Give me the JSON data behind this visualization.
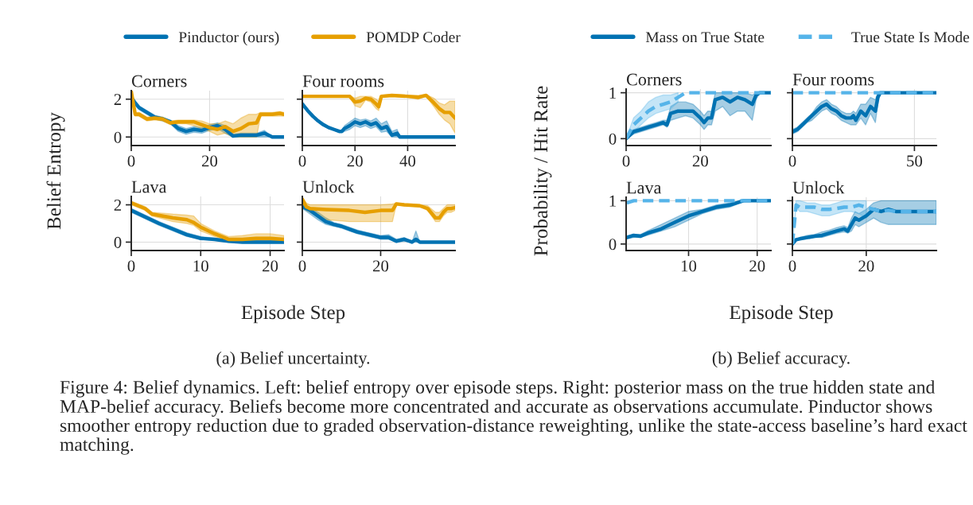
{
  "chart_data": [
    {
      "type": "line",
      "title": "Corners",
      "ylabel": "Belief Entropy",
      "legend": "top",
      "grid": true,
      "xlim": [
        0,
        39
      ],
      "xticks": [
        0,
        20
      ],
      "ylim": [
        -0.45,
        2.45
      ],
      "yticks": [
        0,
        2
      ],
      "annotations": [
        "(a) Belief uncertainty.",
        "Figure 4: Belief dynamics. Left: belief entropy over episode steps. Right: posterior mass on the true hidden state and MAP-belief accuracy. Beliefs become more concentrated and accurate as observations accumulate. Pinductor shows smoother entropy reduction due to graded observation-distance reweighting, unlike the state-access baseline’s hard exact matching."
      ],
      "series": [
        {
          "name": "Pinductor (ours)",
          "color": "#0072b2",
          "line_style": "solid",
          "x": [
            0,
            1,
            2,
            4,
            6,
            8,
            10,
            12,
            14,
            16,
            18,
            20,
            22,
            24,
            26,
            28,
            30,
            32,
            34,
            36,
            39
          ],
          "values": [
            2.1,
            1.8,
            1.55,
            1.3,
            1.05,
            0.95,
            0.8,
            0.45,
            0.3,
            0.4,
            0.35,
            0.5,
            0.6,
            0.4,
            0.05,
            0.1,
            0.1,
            0.1,
            0.2,
            0,
            0
          ],
          "lower": [
            2.0,
            1.7,
            1.45,
            1.2,
            0.95,
            0.85,
            0.7,
            0.3,
            0.15,
            0.25,
            0.2,
            0.35,
            0.45,
            0.2,
            0,
            0,
            0,
            0,
            0,
            0,
            0
          ],
          "upper": [
            2.2,
            1.9,
            1.65,
            1.4,
            1.15,
            1.05,
            0.9,
            0.6,
            0.45,
            0.55,
            0.5,
            0.65,
            0.75,
            0.6,
            0.15,
            0.2,
            0.2,
            0.2,
            0.35,
            0,
            0
          ]
        },
        {
          "name": "POMDP Coder",
          "color": "#e69f00",
          "line_style": "solid",
          "x": [
            0,
            1,
            2,
            4,
            6,
            8,
            10,
            12,
            14,
            16,
            18,
            20,
            22,
            24,
            26,
            28,
            30,
            32,
            33,
            36,
            38,
            39
          ],
          "values": [
            2.4,
            1.2,
            1.2,
            0.95,
            1.0,
            0.95,
            0.75,
            0.8,
            0.8,
            0.8,
            0.65,
            0.5,
            0.4,
            0.55,
            0.3,
            0.45,
            0.7,
            0.75,
            1.2,
            1.2,
            1.25,
            1.2
          ],
          "lower": [
            2.3,
            1.1,
            1.1,
            0.85,
            0.9,
            0.85,
            0.65,
            0.7,
            0.7,
            0.6,
            0.45,
            0.3,
            0.1,
            0.2,
            0,
            0,
            0,
            0,
            1.1,
            1.1,
            1.1,
            1.1
          ],
          "upper": [
            2.45,
            1.3,
            1.3,
            1.05,
            1.1,
            1.05,
            0.85,
            0.9,
            0.9,
            0.9,
            0.85,
            0.7,
            0.7,
            0.85,
            0.7,
            1.0,
            1.2,
            1.2,
            1.3,
            1.3,
            1.35,
            1.3
          ]
        }
      ]
    },
    {
      "type": "line",
      "title": "Four rooms",
      "grid": true,
      "tick_labels": "x",
      "xlim": [
        0,
        58
      ],
      "xticks": [
        0,
        20,
        40
      ],
      "ylim": [
        -0.45,
        2.45
      ],
      "yticks": [
        0,
        2
      ],
      "series": [
        {
          "color": "#0072b2",
          "line_style": "solid",
          "x": [
            0,
            2,
            4,
            6,
            8,
            10,
            12,
            14,
            15,
            16,
            18,
            20,
            22,
            24,
            26,
            28,
            30,
            32,
            34,
            36,
            37,
            58
          ],
          "values": [
            1.75,
            1.4,
            1.1,
            0.85,
            0.65,
            0.5,
            0.4,
            0.3,
            0.3,
            0.45,
            0.6,
            0.8,
            0.7,
            0.8,
            0.65,
            0.75,
            0.45,
            0.55,
            0.1,
            0.2,
            0,
            0
          ],
          "lower": [
            1.7,
            1.35,
            1.05,
            0.8,
            0.6,
            0.45,
            0.35,
            0.25,
            0.25,
            0.3,
            0.4,
            0.6,
            0.5,
            0.6,
            0.45,
            0.55,
            0.25,
            0.3,
            0,
            0,
            0,
            0
          ],
          "upper": [
            1.8,
            1.45,
            1.15,
            0.9,
            0.7,
            0.55,
            0.45,
            0.35,
            0.35,
            0.6,
            0.8,
            1.0,
            0.9,
            0.95,
            0.85,
            1.0,
            0.7,
            0.85,
            0.3,
            0.4,
            0,
            0
          ]
        },
        {
          "color": "#e69f00",
          "line_style": "solid",
          "x": [
            0,
            10,
            18,
            20,
            22,
            24,
            26,
            28,
            29,
            30,
            34,
            40,
            44,
            47,
            50,
            52,
            54,
            56,
            58
          ],
          "values": [
            2.15,
            2.15,
            2.15,
            1.85,
            1.9,
            2.05,
            2.0,
            1.75,
            1.6,
            2.15,
            2.2,
            2.15,
            2.1,
            2.2,
            1.8,
            1.5,
            1.3,
            1.3,
            1.0
          ],
          "lower": [
            2.1,
            2.1,
            2.1,
            1.65,
            1.55,
            1.95,
            1.85,
            1.5,
            1.4,
            2.1,
            2.15,
            2.1,
            2.0,
            2.15,
            1.6,
            1.2,
            0.9,
            0.7,
            0.2
          ],
          "upper": [
            2.2,
            2.2,
            2.2,
            2.05,
            2.15,
            2.15,
            2.15,
            2.0,
            1.9,
            2.2,
            2.25,
            2.2,
            2.2,
            2.25,
            2.05,
            1.8,
            1.7,
            1.9,
            1.9
          ]
        }
      ]
    },
    {
      "type": "line",
      "title": "Lava",
      "xlabel": "Episode Step",
      "grid": true,
      "xlim": [
        0,
        22
      ],
      "xticks": [
        0,
        10,
        20
      ],
      "ylim": [
        -0.45,
        2.45
      ],
      "yticks": [
        0,
        2
      ],
      "series": [
        {
          "color": "#0072b2",
          "line_style": "solid",
          "x": [
            0,
            2,
            4,
            6,
            8,
            10,
            12,
            14,
            16,
            18,
            20,
            22
          ],
          "values": [
            1.7,
            1.35,
            1.0,
            0.7,
            0.4,
            0.2,
            0.15,
            0.05,
            0,
            0,
            0,
            0
          ],
          "lower": [
            1.6,
            1.25,
            0.9,
            0.6,
            0.3,
            0.15,
            0.1,
            0,
            0,
            0,
            0,
            0
          ],
          "upper": [
            1.8,
            1.45,
            1.1,
            0.8,
            0.5,
            0.3,
            0.2,
            0.1,
            0.05,
            0.05,
            0.05,
            0.05
          ]
        },
        {
          "color": "#e69f00",
          "line_style": "solid",
          "x": [
            0,
            2,
            3,
            6,
            8,
            9,
            10,
            12,
            14,
            16,
            18,
            20,
            22
          ],
          "values": [
            2.1,
            1.8,
            1.5,
            1.3,
            1.2,
            1.05,
            0.8,
            0.45,
            0.15,
            0.15,
            0.2,
            0.2,
            0.15
          ],
          "lower": [
            2.0,
            1.7,
            1.4,
            1.1,
            1.0,
            0.9,
            0.6,
            0.3,
            0.05,
            0.05,
            0.05,
            0.05,
            0.05
          ],
          "upper": [
            2.2,
            1.9,
            1.6,
            1.5,
            1.45,
            1.4,
            1.0,
            0.6,
            0.3,
            0.35,
            0.45,
            0.45,
            0.35
          ]
        }
      ]
    },
    {
      "type": "line",
      "title": "Unlock",
      "grid": true,
      "tick_labels": "x",
      "xlim": [
        0,
        39
      ],
      "xticks": [
        0,
        20
      ],
      "ylim": [
        -0.45,
        2.45
      ],
      "yticks": [
        0,
        2
      ],
      "series": [
        {
          "color": "#0072b2",
          "line_style": "solid",
          "x": [
            0,
            2,
            4,
            6,
            8,
            10,
            12,
            14,
            16,
            18,
            20,
            22,
            24,
            26,
            28,
            29,
            30,
            39
          ],
          "values": [
            1.9,
            1.7,
            1.4,
            1.1,
            0.95,
            0.85,
            0.7,
            0.55,
            0.45,
            0.35,
            0.25,
            0.25,
            0.05,
            0.15,
            0,
            0.15,
            0,
            0
          ],
          "lower": [
            1.8,
            1.5,
            1.2,
            0.95,
            0.85,
            0.75,
            0.6,
            0.45,
            0.35,
            0.25,
            0.15,
            0.15,
            0,
            0.05,
            0,
            0,
            0,
            0
          ],
          "upper": [
            2.0,
            1.85,
            1.6,
            1.3,
            1.05,
            0.95,
            0.8,
            0.65,
            0.55,
            0.45,
            0.35,
            0.4,
            0.15,
            0.25,
            0,
            0.6,
            0,
            0
          ]
        },
        {
          "color": "#e69f00",
          "line_style": "solid",
          "x": [
            0,
            1,
            2,
            6,
            12,
            16,
            20,
            23,
            24,
            26,
            30,
            32,
            34,
            35,
            36,
            37,
            38,
            39
          ],
          "values": [
            2.3,
            1.9,
            1.8,
            1.75,
            1.7,
            1.6,
            1.7,
            1.7,
            2.05,
            2.0,
            1.95,
            1.8,
            1.3,
            1.3,
            1.6,
            1.8,
            1.8,
            1.85
          ],
          "lower": [
            2.2,
            1.7,
            1.6,
            1.2,
            1.1,
            1.1,
            1.1,
            1.1,
            2.0,
            1.95,
            1.9,
            1.7,
            1.1,
            1.1,
            1.4,
            1.6,
            1.6,
            1.7
          ],
          "upper": [
            2.4,
            2.1,
            2.0,
            2.0,
            2.0,
            2.0,
            2.0,
            2.05,
            2.1,
            2.05,
            2.0,
            1.95,
            1.6,
            1.6,
            1.8,
            2.0,
            2.0,
            2.0
          ]
        }
      ]
    },
    {
      "type": "line",
      "title": "Corners",
      "ylabel": "Probability / Hit Rate",
      "legend": "top",
      "grid": true,
      "xlim": [
        0,
        39
      ],
      "xticks": [
        0,
        20
      ],
      "ylim": [
        -0.15,
        1.08
      ],
      "yticks": [
        0,
        1
      ],
      "annotations": [
        "(b) Belief accuracy."
      ],
      "series": [
        {
          "name": "Mass on True State",
          "color": "#0072b2",
          "line_style": "solid",
          "x": [
            0,
            2,
            4,
            6,
            8,
            10,
            11,
            12,
            14,
            16,
            18,
            20,
            21,
            22,
            23,
            24,
            26,
            28,
            30,
            32,
            34,
            35,
            36,
            39
          ],
          "values": [
            0,
            0.15,
            0.2,
            0.25,
            0.3,
            0.35,
            0.3,
            0.55,
            0.6,
            0.6,
            0.6,
            0.45,
            0.35,
            0.45,
            0.45,
            0.85,
            0.9,
            0.8,
            0.9,
            0.85,
            0.75,
            0.95,
            1,
            1
          ],
          "lower": [
            0,
            0.1,
            0.15,
            0.2,
            0.25,
            0.3,
            0.25,
            0.4,
            0.45,
            0.5,
            0.45,
            0.3,
            0.2,
            0.3,
            0.3,
            0.6,
            0.7,
            0.5,
            0.6,
            0.6,
            0.4,
            0.85,
            1,
            1
          ],
          "upper": [
            0,
            0.2,
            0.25,
            0.3,
            0.35,
            0.4,
            0.4,
            0.7,
            0.8,
            0.8,
            0.75,
            0.6,
            0.5,
            0.6,
            0.6,
            1.0,
            1.0,
            1.0,
            1.0,
            1.0,
            0.95,
            1,
            1,
            1
          ]
        },
        {
          "name": "True State Is Mode",
          "color": "#56b4e9",
          "line_style": "dashed",
          "x": [
            0,
            2,
            4,
            6,
            8,
            10,
            12,
            14,
            16,
            39
          ],
          "values": [
            0,
            0.3,
            0.45,
            0.6,
            0.7,
            0.75,
            0.8,
            0.9,
            1,
            1
          ],
          "lower": [
            0,
            0.15,
            0.3,
            0.45,
            0.55,
            0.6,
            0.65,
            0.8,
            null,
            null
          ],
          "upper": [
            0,
            0.45,
            0.6,
            0.8,
            0.9,
            0.95,
            0.95,
            1,
            null,
            null
          ]
        }
      ]
    },
    {
      "type": "line",
      "title": "Four rooms",
      "grid": true,
      "tick_labels": "x",
      "xlim": [
        0,
        59
      ],
      "xticks": [
        0,
        50
      ],
      "ylim": [
        -0.15,
        1.08
      ],
      "yticks": [
        0,
        1
      ],
      "series": [
        {
          "color": "#0072b2",
          "line_style": "solid",
          "x": [
            0,
            2,
            4,
            6,
            8,
            10,
            12,
            14,
            16,
            18,
            20,
            22,
            24,
            25,
            26,
            28,
            30,
            32,
            34,
            35,
            36,
            59
          ],
          "values": [
            0.15,
            0.2,
            0.3,
            0.4,
            0.5,
            0.6,
            0.7,
            0.75,
            0.65,
            0.6,
            0.5,
            0.45,
            0.45,
            0.5,
            0.4,
            0.6,
            0.5,
            0.7,
            0.6,
            0.9,
            1,
            1
          ],
          "lower": [
            0.1,
            0.15,
            0.25,
            0.35,
            0.4,
            0.5,
            0.6,
            0.65,
            0.55,
            0.5,
            0.4,
            0.35,
            0.3,
            0.3,
            0.3,
            0.45,
            0.3,
            0.55,
            0.35,
            0.75,
            1,
            1
          ],
          "upper": [
            0.2,
            0.25,
            0.35,
            0.45,
            0.55,
            0.7,
            0.8,
            0.85,
            0.75,
            0.7,
            0.6,
            0.55,
            0.55,
            0.6,
            0.55,
            0.75,
            0.75,
            0.9,
            0.85,
            1,
            1,
            1
          ]
        },
        {
          "color": "#56b4e9",
          "line_style": "dashed",
          "x": [
            0,
            59
          ],
          "values": [
            1,
            1
          ]
        }
      ]
    },
    {
      "type": "line",
      "title": "Lava",
      "xlabel": "Episode Step",
      "grid": true,
      "xlim": [
        0.9,
        22
      ],
      "xticks": [
        10,
        20
      ],
      "ylim": [
        -0.15,
        1.08
      ],
      "yticks": [
        0,
        1
      ],
      "series": [
        {
          "color": "#0072b2",
          "line_style": "solid",
          "x": [
            1,
            2,
            3,
            4,
            6,
            8,
            10,
            12,
            14,
            16,
            18,
            20,
            22
          ],
          "values": [
            0.15,
            0.2,
            0.18,
            0.25,
            0.35,
            0.5,
            0.65,
            0.75,
            0.85,
            0.9,
            1,
            1,
            1
          ],
          "lower": [
            0.12,
            0.15,
            0.15,
            0.2,
            0.3,
            0.4,
            0.55,
            0.7,
            0.8,
            0.85,
            0.98,
            1,
            1
          ],
          "upper": [
            0.18,
            0.22,
            0.22,
            0.3,
            0.45,
            0.6,
            0.75,
            0.8,
            0.9,
            0.95,
            1,
            1,
            1
          ]
        },
        {
          "color": "#56b4e9",
          "line_style": "dashed",
          "x": [
            1,
            2,
            22
          ],
          "values": [
            0.95,
            1,
            1
          ]
        }
      ]
    },
    {
      "type": "line",
      "title": "Unlock",
      "grid": true,
      "tick_labels": "x",
      "xlim": [
        0,
        39
      ],
      "xticks": [
        0,
        20
      ],
      "ylim": [
        -0.15,
        1.08
      ],
      "yticks": [
        0,
        1
      ],
      "series": [
        {
          "color": "#0072b2",
          "line_style": "solid",
          "x": [
            0,
            1,
            2,
            4,
            6,
            8,
            10,
            12,
            14,
            15,
            16,
            17,
            18,
            20,
            22,
            24,
            26,
            28,
            30,
            32,
            34,
            36,
            39
          ],
          "values": [
            0,
            0.1,
            0.12,
            0.15,
            0.18,
            0.2,
            0.25,
            0.3,
            0.35,
            0.3,
            0.45,
            0.6,
            0.55,
            0.65,
            0.8,
            0.75,
            0.8,
            0.75,
            0.75,
            0.75,
            0.75,
            0.75,
            0.75
          ],
          "lower": [
            0,
            0.08,
            0.1,
            0.12,
            0.15,
            0.15,
            0.2,
            0.25,
            0.28,
            0.25,
            0.3,
            0.45,
            0.4,
            0.5,
            0.6,
            0.5,
            0.45,
            0.45,
            0.45,
            0.45,
            0.45,
            0.45,
            0.45
          ],
          "upper": [
            0,
            0.12,
            0.15,
            0.2,
            0.22,
            0.28,
            0.32,
            0.38,
            0.42,
            0.38,
            0.6,
            0.75,
            0.7,
            0.8,
            0.95,
            1,
            1,
            1,
            1,
            1,
            1,
            1,
            1
          ]
        },
        {
          "color": "#56b4e9",
          "line_style": "dashed",
          "x": [
            0,
            1,
            2,
            4,
            6,
            8,
            10,
            12,
            14,
            16,
            18,
            20,
            22,
            24,
            26,
            28,
            30,
            32,
            34,
            36,
            39
          ],
          "values": [
            0,
            0.9,
            0.85,
            0.85,
            0.85,
            0.8,
            0.8,
            0.82,
            0.85,
            0.85,
            0.9,
            0.85,
            0.8,
            0.75,
            0.78,
            0.75,
            0.75,
            0.75,
            0.75,
            0.75,
            0.75
          ],
          "lower": [
            0,
            0.85,
            0.75,
            0.75,
            0.7,
            0.65,
            0.65,
            0.7,
            0.75,
            0.75,
            0.7,
            0.6,
            null,
            null,
            null,
            null,
            null,
            null,
            null,
            null,
            null
          ],
          "upper": [
            0,
            1,
            1,
            0.95,
            0.95,
            0.9,
            0.9,
            0.95,
            1,
            1,
            1,
            1,
            null,
            null,
            null,
            null,
            null,
            null,
            null,
            null,
            null
          ]
        }
      ]
    }
  ]
}
